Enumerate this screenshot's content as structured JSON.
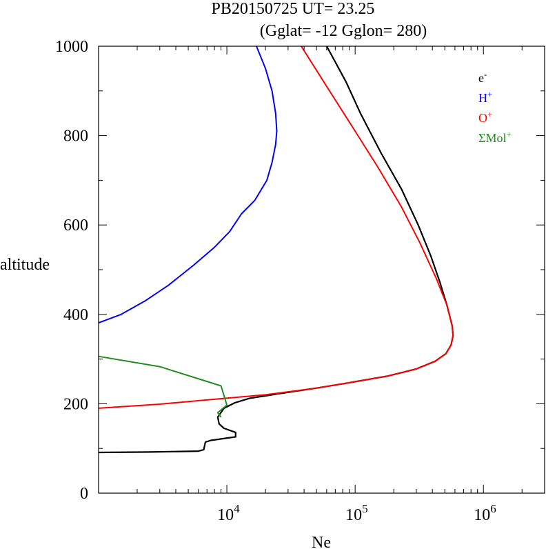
{
  "chart_data": {
    "type": "line",
    "title": "PB20150725   UT=  23.25",
    "subtitle": "(Gglat= -12   Gglon=  280)",
    "xlabel": "Ne",
    "ylabel": "altitude",
    "xscale": "log",
    "xlim": [
      1000,
      3000000
    ],
    "ylim": [
      0,
      1000
    ],
    "x_tick_labels": [
      {
        "value": 10000,
        "base": "10",
        "exp": "4"
      },
      {
        "value": 100000,
        "base": "10",
        "exp": "5"
      },
      {
        "value": 1000000,
        "base": "10",
        "exp": "6"
      }
    ],
    "y_ticks": [
      0,
      200,
      400,
      600,
      800,
      1000
    ],
    "y_tick_labels": [
      "0",
      "200",
      "400",
      "600",
      "800",
      "1000"
    ],
    "grid": false,
    "legend_position": "top-right",
    "series": [
      {
        "name": "e-",
        "label_base": "e",
        "label_sup": "-",
        "color": "#000000",
        "points": [
          [
            1000,
            91
          ],
          [
            2500,
            92
          ],
          [
            6000,
            94
          ],
          [
            6600,
            97
          ],
          [
            6800,
            114
          ],
          [
            7500,
            118
          ],
          [
            11700,
            126
          ],
          [
            11700,
            136
          ],
          [
            9500,
            145
          ],
          [
            8700,
            155
          ],
          [
            8500,
            170
          ],
          [
            9500,
            190
          ],
          [
            11500,
            202
          ],
          [
            15000,
            212
          ],
          [
            25000,
            222
          ],
          [
            50000,
            235
          ],
          [
            90000,
            247
          ],
          [
            180000,
            262
          ],
          [
            300000,
            278
          ],
          [
            420000,
            295
          ],
          [
            510000,
            312
          ],
          [
            560000,
            332
          ],
          [
            580000,
            353
          ],
          [
            570000,
            375
          ],
          [
            520000,
            420
          ],
          [
            460000,
            470
          ],
          [
            390000,
            530
          ],
          [
            310000,
            600
          ],
          [
            230000,
            680
          ],
          [
            160000,
            760
          ],
          [
            110000,
            850
          ],
          [
            85000,
            920
          ],
          [
            60000,
            1000
          ]
        ]
      },
      {
        "name": "H+",
        "label_base": "H",
        "label_sup": "+",
        "color": "#0000ff",
        "points": [
          [
            1000,
            381
          ],
          [
            1500,
            400
          ],
          [
            2300,
            430
          ],
          [
            3500,
            465
          ],
          [
            5500,
            510
          ],
          [
            8000,
            550
          ],
          [
            10500,
            585
          ],
          [
            13000,
            625
          ],
          [
            16500,
            655
          ],
          [
            20500,
            700
          ],
          [
            22500,
            740
          ],
          [
            24000,
            780
          ],
          [
            24500,
            810
          ],
          [
            24000,
            850
          ],
          [
            22500,
            900
          ],
          [
            20000,
            950
          ],
          [
            17000,
            1000
          ]
        ]
      },
      {
        "name": "O+",
        "label_base": "O",
        "label_sup": "+",
        "color": "#ff0000",
        "points": [
          [
            1000,
            190
          ],
          [
            3000,
            199
          ],
          [
            8000,
            210
          ],
          [
            20000,
            220
          ],
          [
            50000,
            235
          ],
          [
            90000,
            247
          ],
          [
            180000,
            262
          ],
          [
            300000,
            278
          ],
          [
            420000,
            295
          ],
          [
            510000,
            312
          ],
          [
            560000,
            332
          ],
          [
            580000,
            353
          ],
          [
            570000,
            375
          ],
          [
            520000,
            420
          ],
          [
            430000,
            480
          ],
          [
            320000,
            560
          ],
          [
            230000,
            640
          ],
          [
            150000,
            730
          ],
          [
            95000,
            820
          ],
          [
            60000,
            910
          ],
          [
            38000,
            1000
          ]
        ]
      },
      {
        "name": "ΣMol+",
        "label_base": "ΣMol",
        "label_sup": "+",
        "color": "#228b22",
        "points": [
          [
            1000,
            306
          ],
          [
            3000,
            283
          ],
          [
            9000,
            240
          ],
          [
            10000,
            197
          ],
          [
            8500,
            180
          ],
          [
            9000,
            170
          ]
        ]
      }
    ]
  }
}
